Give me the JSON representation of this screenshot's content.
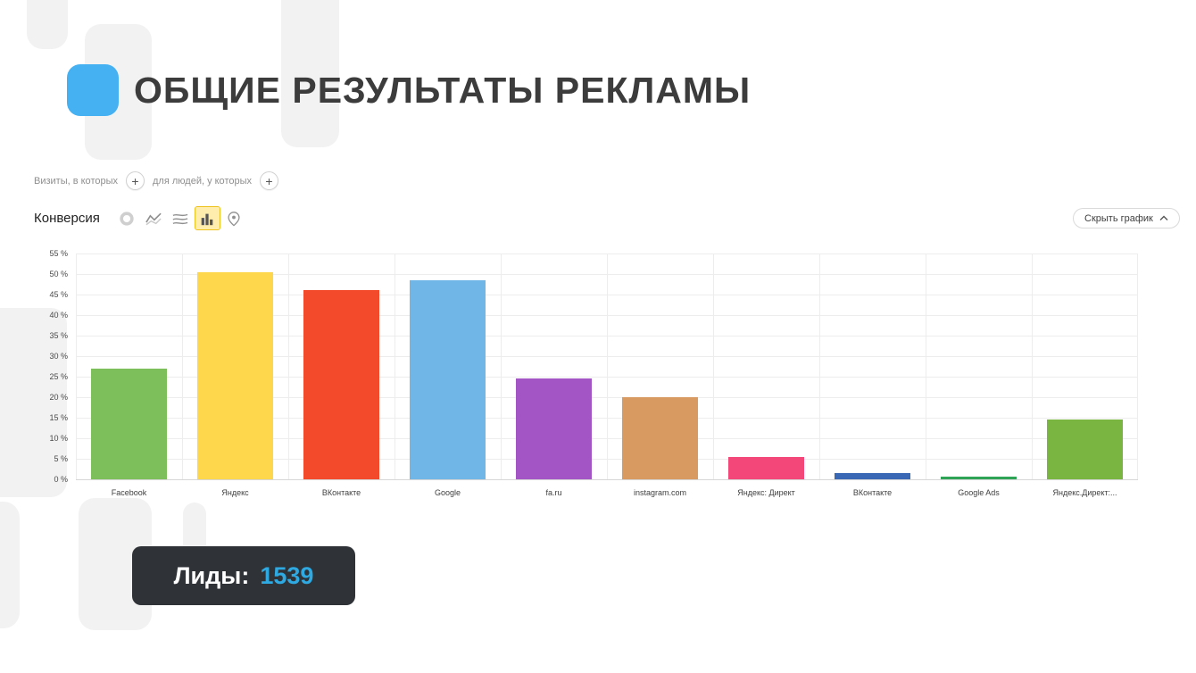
{
  "slide": {
    "title": "ОБЩИЕ РЕЗУЛЬТАТЫ РЕКЛАМЫ",
    "accent_color": "#45b1f2"
  },
  "segments": {
    "visits_label": "Визиты, в которых",
    "people_label": "для людей, у которых",
    "add_button": "+"
  },
  "metric": {
    "label": "Конверсия",
    "toolbar_icons": [
      {
        "name": "donut-chart-icon",
        "selected": false
      },
      {
        "name": "line-chart-icon",
        "selected": false
      },
      {
        "name": "area-chart-icon",
        "selected": false
      },
      {
        "name": "bar-chart-icon",
        "selected": true
      },
      {
        "name": "map-pin-icon",
        "selected": false
      }
    ],
    "hide_chart_label": "Скрыть график"
  },
  "chart_data": {
    "type": "bar",
    "title": "Конверсия",
    "categories": [
      "Facebook",
      "Яндекс",
      "ВКонтакте",
      "Google",
      "fa.ru",
      "instagram.com",
      "Яндекс: Директ",
      "ВКонтакте",
      "Google Ads",
      "Яндекс.Директ:..."
    ],
    "values": [
      27,
      50.5,
      46,
      48.5,
      24.5,
      20,
      5.5,
      1.5,
      0.7,
      14.5
    ],
    "bar_colors": [
      "#7cbf5b",
      "#fed74c",
      "#f44a2c",
      "#70b7e8",
      "#a355c6",
      "#d89a61",
      "#f34679",
      "#3a68b5",
      "#2fa356",
      "#7ab441"
    ],
    "xlabel": "",
    "ylabel": "",
    "ylim": [
      0,
      55
    ],
    "y_ticks": [
      0,
      5,
      10,
      15,
      20,
      25,
      30,
      35,
      40,
      45,
      50,
      55
    ],
    "y_tick_suffix": " %",
    "grid": true,
    "legend": false
  },
  "leads": {
    "label": "Лиды:",
    "value": "1539",
    "value_color": "#2fa9e1"
  }
}
